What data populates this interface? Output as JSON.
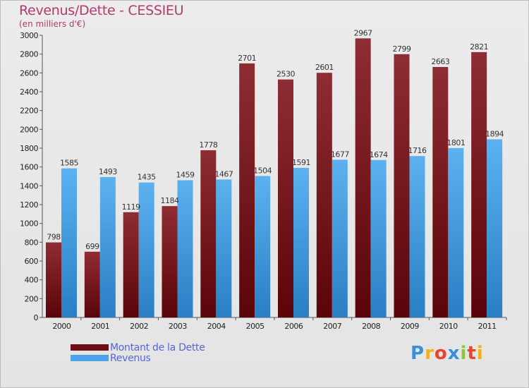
{
  "title": "Revenus/Dette - CESSIEU",
  "subtitle": "(en milliers d'€)",
  "logo_text": "Proxiti",
  "chart_data": {
    "type": "bar",
    "categories": [
      "2000",
      "2001",
      "2002",
      "2003",
      "2004",
      "2005",
      "2006",
      "2007",
      "2008",
      "2009",
      "2010",
      "2011"
    ],
    "series": [
      {
        "name": "Montant de la Dette",
        "values": [
          798,
          699,
          1119,
          1184,
          1778,
          2701,
          2530,
          2601,
          2967,
          2799,
          2663,
          2821
        ]
      },
      {
        "name": "Revenus",
        "values": [
          1585,
          1493,
          1435,
          1459,
          1467,
          1504,
          1591,
          1677,
          1674,
          1716,
          1801,
          1894
        ]
      }
    ],
    "ylim": [
      0,
      3000
    ],
    "yticks": [
      0,
      200,
      400,
      600,
      800,
      1000,
      1200,
      1400,
      1600,
      1800,
      2000,
      2200,
      2400,
      2600,
      2800,
      3000
    ],
    "grid": false,
    "legend": "bottom-left",
    "colors": {
      "Montant de la Dette": "#7a1b22",
      "Revenus": "#4a9fe0"
    }
  },
  "legend": {
    "items": [
      {
        "label": "Montant de la Dette",
        "color": "#6b0d12"
      },
      {
        "label": "Revenus",
        "color": "#4aa3ea"
      }
    ]
  }
}
